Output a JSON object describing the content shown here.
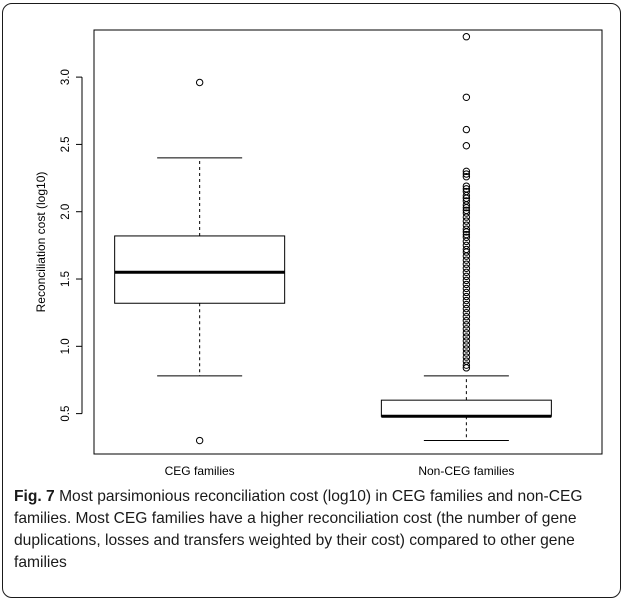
{
  "caption": {
    "label": "Fig. 7",
    "text": " Most parsimonious reconciliation cost (log10) in CEG families and non-CEG families. Most CEG families have a higher reconciliation cost (the number of gene duplications, losses and transfers weighted by their cost) compared to other gene families"
  },
  "chart_data": {
    "type": "boxplot",
    "title": "",
    "xlabel": "",
    "ylabel": "Reconciliation cost (log10)",
    "ylim": [
      0.2,
      3.35
    ],
    "yticks": [
      0.5,
      1.0,
      1.5,
      2.0,
      2.5,
      3.0
    ],
    "ytick_labels": [
      "0.5",
      "1.0",
      "1.5",
      "2.0",
      "2.5",
      "3.0"
    ],
    "grid": false,
    "categories": [
      "CEG families",
      "Non-CEG families"
    ],
    "boxes": [
      {
        "name": "CEG families",
        "whisker_low": 0.78,
        "q1": 1.32,
        "median": 1.55,
        "q3": 1.82,
        "whisker_high": 2.4,
        "outliers": [
          2.96,
          0.3
        ]
      },
      {
        "name": "Non-CEG families",
        "whisker_low": 0.3,
        "q1": 0.48,
        "median": 0.48,
        "q3": 0.6,
        "whisker_high": 0.78,
        "outliers": [
          3.3,
          2.85,
          2.61,
          2.49,
          2.3,
          2.28,
          2.26,
          2.19,
          2.17,
          2.15,
          2.12,
          2.1,
          2.08,
          2.05,
          2.03,
          2.01,
          1.99,
          1.96,
          1.93,
          1.9,
          1.87,
          1.85,
          1.83,
          1.81,
          1.78,
          1.75,
          1.72,
          1.7,
          1.67,
          1.64,
          1.61,
          1.58,
          1.55,
          1.52,
          1.49,
          1.46,
          1.43,
          1.4,
          1.37,
          1.34,
          1.31,
          1.28,
          1.25,
          1.22,
          1.19,
          1.16,
          1.13,
          1.1,
          1.07,
          1.04,
          1.01,
          0.98,
          0.95,
          0.92,
          0.89,
          0.86,
          0.84
        ]
      }
    ]
  }
}
